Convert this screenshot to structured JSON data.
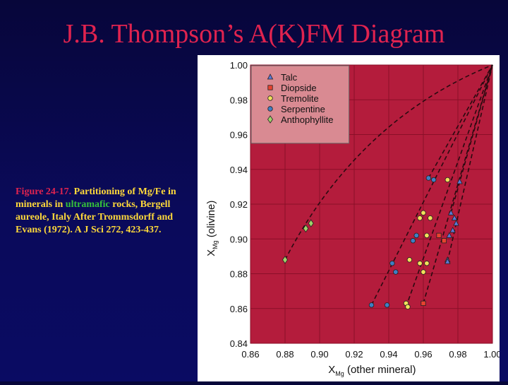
{
  "slide": {
    "title": "J.B. Thompson’s A(K)FM Diagram",
    "caption_fig": "Figure 24-17.",
    "caption_text1": " Partitioning of Mg/Fe in minerals in ",
    "caption_highlight": "ultramafic",
    "caption_text2": " rocks, Bergell aureole, Italy After Trommsdorff and Evans (1972). A J Sci 272, 423-437."
  },
  "colors": {
    "plot_bg": "#b41c3c",
    "grid": "#8a0f28",
    "legend_bg": "#d98a92",
    "talc": "#5b79d6",
    "diopside": "#e8432f",
    "tremolite": "#f2e05a",
    "serpentine": "#3f7fc4",
    "anthophyllite": "#9fd26a"
  },
  "chart_data": {
    "type": "scatter",
    "title": "",
    "xlabel_main": "X",
    "xlabel_sub": "Mg",
    "xlabel_rest": " (other mineral)",
    "ylabel_main": "X",
    "ylabel_sub": "Mg",
    "ylabel_rest": " (olivine)",
    "xlim": [
      0.86,
      1.0
    ],
    "ylim": [
      0.84,
      1.0
    ],
    "x_ticks": [
      "0.86",
      "0.88",
      "0.90",
      "0.92",
      "0.94",
      "0.96",
      "0.98",
      "1.00"
    ],
    "y_ticks": [
      "0.84",
      "0.86",
      "0.88",
      "0.90",
      "0.92",
      "0.94",
      "0.96",
      "0.98",
      "1.00"
    ],
    "legend_position": "top-left",
    "series": [
      {
        "name": "Talc",
        "marker": "triangle",
        "points": [
          [
            0.981,
            0.933
          ],
          [
            0.976,
            0.915
          ],
          [
            0.978,
            0.912
          ],
          [
            0.979,
            0.909
          ],
          [
            0.977,
            0.905
          ],
          [
            0.975,
            0.902
          ],
          [
            0.974,
            0.888
          ],
          [
            0.974,
            0.887
          ]
        ]
      },
      {
        "name": "Diopside",
        "marker": "square",
        "points": [
          [
            0.969,
            0.902
          ],
          [
            0.972,
            0.899
          ],
          [
            0.96,
            0.863
          ]
        ]
      },
      {
        "name": "Tremolite",
        "marker": "circle",
        "points": [
          [
            0.96,
            0.915
          ],
          [
            0.958,
            0.912
          ],
          [
            0.964,
            0.912
          ],
          [
            0.974,
            0.934
          ],
          [
            0.962,
            0.902
          ],
          [
            0.952,
            0.888
          ],
          [
            0.958,
            0.886
          ],
          [
            0.962,
            0.886
          ],
          [
            0.96,
            0.881
          ],
          [
            0.95,
            0.863
          ],
          [
            0.951,
            0.861
          ]
        ]
      },
      {
        "name": "Serpentine",
        "marker": "circle",
        "points": [
          [
            0.963,
            0.935
          ],
          [
            0.966,
            0.934
          ],
          [
            0.956,
            0.902
          ],
          [
            0.954,
            0.899
          ],
          [
            0.942,
            0.886
          ],
          [
            0.944,
            0.881
          ],
          [
            0.93,
            0.862
          ],
          [
            0.939,
            0.862
          ]
        ]
      },
      {
        "name": "Anthophyllite",
        "marker": "diamond",
        "points": [
          [
            0.88,
            0.888
          ],
          [
            0.892,
            0.906
          ],
          [
            0.895,
            0.909
          ]
        ]
      }
    ],
    "lines": [
      {
        "from": [
          0.88,
          0.888
        ],
        "to": [
          1.0,
          1.0
        ],
        "curve": true
      },
      {
        "from": [
          0.93,
          0.862
        ],
        "to": [
          1.0,
          1.0
        ]
      },
      {
        "from": [
          0.95,
          0.861
        ],
        "to": [
          1.0,
          1.0
        ]
      },
      {
        "from": [
          0.96,
          0.863
        ],
        "to": [
          1.0,
          1.0
        ]
      },
      {
        "from": [
          0.974,
          0.887
        ],
        "to": [
          1.0,
          1.0
        ]
      },
      {
        "from": [
          0.963,
          0.935
        ],
        "to": [
          1.0,
          1.0
        ]
      },
      {
        "from": [
          0.976,
          0.915
        ],
        "to": [
          1.0,
          1.0
        ]
      }
    ]
  }
}
